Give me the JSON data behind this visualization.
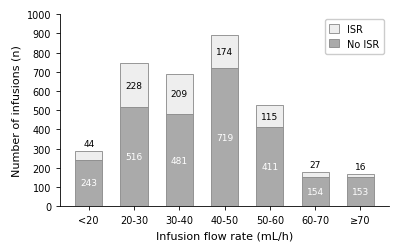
{
  "categories": [
    "<20",
    "20-30",
    "30-40",
    "40-50",
    "50-60",
    "60-70",
    "≥70"
  ],
  "no_isr": [
    243,
    516,
    481,
    719,
    411,
    154,
    153
  ],
  "isr": [
    44,
    228,
    209,
    174,
    115,
    27,
    16
  ],
  "no_isr_color": "#aaaaaa",
  "isr_color": "#eeeeee",
  "no_isr_label": "No ISR",
  "isr_label": "ISR",
  "xlabel": "Infusion flow rate (mL/h)",
  "ylabel": "Number of infusions (n)",
  "ylim": [
    0,
    1000
  ],
  "yticks": [
    0,
    100,
    200,
    300,
    400,
    500,
    600,
    700,
    800,
    900,
    1000
  ],
  "bar_width": 0.6,
  "edge_color": "#888888",
  "background_color": "#ffffff",
  "legend_fontsize": 7,
  "axis_fontsize": 8,
  "tick_fontsize": 7,
  "label_fontsize": 6.5,
  "isr_label_threshold": 50,
  "no_isr_label_color_dark": "#ffffff",
  "no_isr_label_color_light": "#000000"
}
